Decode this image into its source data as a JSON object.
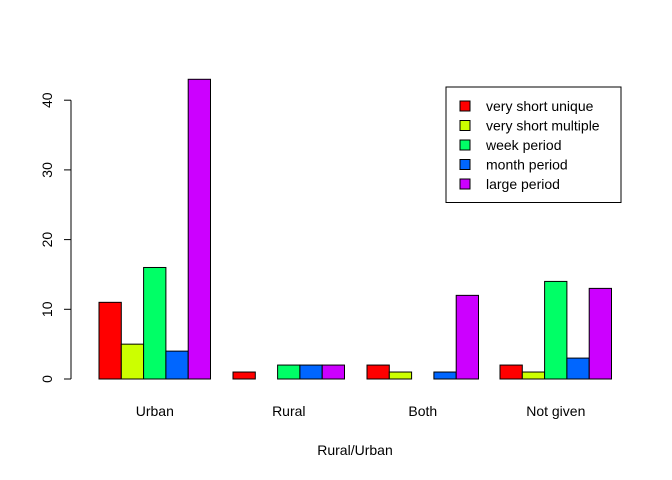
{
  "chart_data": {
    "type": "bar",
    "title": "",
    "xlabel": "Rural/Urban",
    "ylabel": "",
    "ylim": [
      0,
      45
    ],
    "yticks": [
      0,
      10,
      20,
      30,
      40
    ],
    "categories": [
      "Urban",
      "Rural",
      "Both",
      "Not given"
    ],
    "legend_position": "top-right",
    "grid": false,
    "series": [
      {
        "name": "very short unique",
        "color": "#ff0000",
        "values": [
          11,
          1,
          2,
          2
        ]
      },
      {
        "name": "very short multiple",
        "color": "#ccff00",
        "values": [
          5,
          0,
          1,
          1
        ]
      },
      {
        "name": "week period",
        "color": "#00ff66",
        "values": [
          16,
          2,
          0,
          14
        ]
      },
      {
        "name": "month period",
        "color": "#0066ff",
        "values": [
          4,
          2,
          1,
          3
        ]
      },
      {
        "name": "large period",
        "color": "#cc00ff",
        "values": [
          43,
          2,
          12,
          13
        ]
      }
    ]
  }
}
